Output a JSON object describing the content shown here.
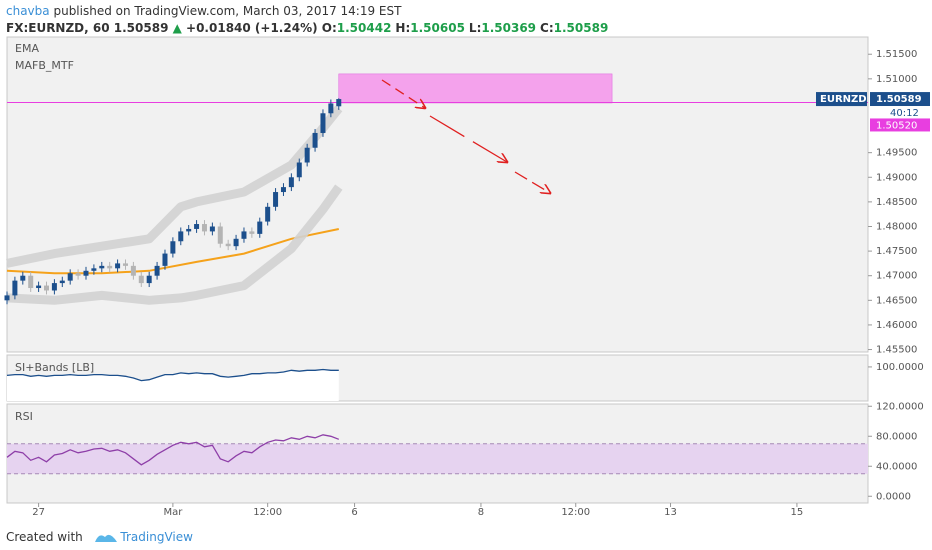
{
  "header": {
    "author": "chavba",
    "published": "published on TradingView.com, March 03, 2017 14:19 EST",
    "symbol": "FX:EURNZD, 60",
    "price": "1.50589",
    "arrow": "▲",
    "change": "+0.01840 (+1.24%)",
    "ohlc": [
      {
        "label": "O:",
        "value": "1.50442"
      },
      {
        "label": "H:",
        "value": "1.50605"
      },
      {
        "label": "L:",
        "value": "1.50369"
      },
      {
        "label": "C:",
        "value": "1.50589"
      }
    ]
  },
  "footer": {
    "created": "Created with",
    "brand": "TradingView"
  },
  "chart_data": [
    {
      "type": "candlestick",
      "legend": [
        "EMA",
        "MAFB_MTF"
      ],
      "xlim": [
        0,
        109
      ],
      "xticks": [
        {
          "value": 4,
          "label": "27"
        },
        {
          "value": 21,
          "label": "Mar"
        },
        {
          "value": 33,
          "label": "12:00"
        },
        {
          "value": 44,
          "label": "6"
        },
        {
          "value": 60,
          "label": "8"
        },
        {
          "value": 72,
          "label": "12:00"
        },
        {
          "value": 84,
          "label": "13"
        },
        {
          "value": 100,
          "label": "15"
        }
      ],
      "ylim": [
        1.4545,
        1.5185
      ],
      "yticks": [
        {
          "value": 1.515,
          "label": "1.51500"
        },
        {
          "value": 1.51,
          "label": "1.51000"
        },
        {
          "value": 1.495,
          "label": "1.49500"
        },
        {
          "value": 1.49,
          "label": "1.49000"
        },
        {
          "value": 1.485,
          "label": "1.48500"
        },
        {
          "value": 1.48,
          "label": "1.48000"
        },
        {
          "value": 1.475,
          "label": "1.47500"
        },
        {
          "value": 1.47,
          "label": "1.47000"
        },
        {
          "value": 1.465,
          "label": "1.46500"
        },
        {
          "value": 1.46,
          "label": "1.46000"
        },
        {
          "value": 1.455,
          "label": "1.45500"
        }
      ],
      "up_color": "#1c4f8c",
      "down_color": "#b4b4b4",
      "open": [
        1.465,
        1.466,
        1.469,
        1.47,
        1.4675,
        1.468,
        1.467,
        1.4685,
        1.469,
        1.4705,
        1.47,
        1.471,
        1.4715,
        1.472,
        1.4715,
        1.4725,
        1.472,
        1.47,
        1.4685,
        1.47,
        1.472,
        1.4745,
        1.477,
        1.479,
        1.4795,
        1.4805,
        1.479,
        1.48,
        1.4765,
        1.476,
        1.4775,
        1.479,
        1.4785,
        1.481,
        1.484,
        1.487,
        1.488,
        1.49,
        1.493,
        1.496,
        1.499,
        1.503,
        1.50442
      ],
      "high": [
        1.4668,
        1.4698,
        1.4708,
        1.4708,
        1.4688,
        1.4688,
        1.4693,
        1.4698,
        1.4713,
        1.4713,
        1.4718,
        1.4723,
        1.4728,
        1.4728,
        1.4733,
        1.4733,
        1.4728,
        1.4708,
        1.4708,
        1.4728,
        1.4753,
        1.4778,
        1.4798,
        1.4803,
        1.4813,
        1.4813,
        1.4808,
        1.4808,
        1.4773,
        1.4783,
        1.4798,
        1.4798,
        1.4818,
        1.4848,
        1.4878,
        1.4888,
        1.4908,
        1.4938,
        1.4968,
        1.4998,
        1.5038,
        1.5058,
        1.50605
      ],
      "low": [
        1.4642,
        1.4652,
        1.4682,
        1.4667,
        1.4667,
        1.4662,
        1.4662,
        1.4677,
        1.4682,
        1.4692,
        1.4692,
        1.4702,
        1.4707,
        1.4707,
        1.4707,
        1.4712,
        1.4692,
        1.4677,
        1.4677,
        1.4692,
        1.4712,
        1.4737,
        1.4762,
        1.4782,
        1.4787,
        1.4782,
        1.4782,
        1.4757,
        1.4752,
        1.4752,
        1.4767,
        1.4777,
        1.4777,
        1.4802,
        1.4832,
        1.4862,
        1.4872,
        1.4892,
        1.4922,
        1.4952,
        1.4982,
        1.5022,
        1.50369
      ],
      "close": [
        1.466,
        1.469,
        1.47,
        1.4675,
        1.468,
        1.467,
        1.4685,
        1.469,
        1.4705,
        1.47,
        1.471,
        1.4715,
        1.472,
        1.4715,
        1.4725,
        1.472,
        1.47,
        1.4685,
        1.47,
        1.472,
        1.4745,
        1.477,
        1.479,
        1.4795,
        1.4805,
        1.479,
        1.48,
        1.4765,
        1.476,
        1.4775,
        1.479,
        1.4785,
        1.481,
        1.484,
        1.487,
        1.488,
        1.49,
        1.493,
        1.496,
        1.499,
        1.503,
        1.505,
        1.50589
      ],
      "series": [
        {
          "name": "EMA",
          "color": "#f5a21b",
          "x": [
            0,
            6,
            12,
            18,
            24,
            30,
            36,
            42
          ],
          "values": [
            1.471,
            1.4705,
            1.4705,
            1.471,
            1.4728,
            1.4745,
            1.4775,
            1.4795
          ]
        },
        {
          "name": "MAFB_MTF",
          "color": "#d2d2d2",
          "x": [
            0,
            6,
            12,
            18,
            22,
            24,
            30,
            36,
            40,
            42
          ],
          "upper": [
            1.4725,
            1.4745,
            1.476,
            1.4775,
            1.484,
            1.485,
            1.487,
            1.4925,
            1.5,
            1.504
          ],
          "lower": [
            1.4655,
            1.465,
            1.466,
            1.465,
            1.4655,
            1.466,
            1.468,
            1.4755,
            1.4835,
            1.488
          ]
        }
      ],
      "zone": {
        "x": [
          42,
          76.6
        ],
        "y": [
          1.5051,
          1.511
        ],
        "color": "#f4a2ec"
      },
      "hline": {
        "value": 1.5052,
        "label": "1.50520",
        "color": "#e83ee0"
      },
      "last": {
        "symbol": "EURNZD",
        "value": 1.50589,
        "label": "1.50589",
        "countdown": "40:12",
        "color": "#1c4f8c"
      }
    },
    {
      "type": "line",
      "title": "SI+Bands [LB]",
      "color": "#1c4f8c",
      "fill": "#ffffff",
      "ylim": [
        60,
        114
      ],
      "yticks": [
        {
          "value": 100,
          "label": "100.0000"
        }
      ],
      "values": [
        90,
        91,
        91,
        89,
        90,
        89,
        90,
        90,
        91,
        90,
        90,
        91,
        91,
        90,
        90,
        89,
        87,
        84,
        85,
        88,
        91,
        91,
        93,
        92,
        93,
        92,
        92,
        89,
        88,
        89,
        90,
        92,
        92,
        93,
        93,
        94,
        96,
        95,
        96,
        96,
        97,
        96,
        96
      ]
    },
    {
      "type": "line",
      "title": "RSI",
      "color": "#8e3fa8",
      "band": [
        30,
        70
      ],
      "band_color": "#e6d3f0",
      "ylim": [
        -9,
        123
      ],
      "yticks": [
        {
          "value": 120,
          "label": "120.0000"
        },
        {
          "value": 80,
          "label": "80.0000"
        },
        {
          "value": 40,
          "label": "40.0000"
        },
        {
          "value": 0,
          "label": "0.0000"
        }
      ],
      "values": [
        52,
        60,
        58,
        48,
        52,
        46,
        55,
        57,
        62,
        58,
        60,
        63,
        64,
        60,
        62,
        58,
        50,
        42,
        48,
        56,
        62,
        68,
        72,
        70,
        72,
        66,
        68,
        50,
        46,
        54,
        60,
        58,
        66,
        72,
        75,
        74,
        78,
        76,
        80,
        78,
        82,
        80,
        76
      ]
    }
  ]
}
